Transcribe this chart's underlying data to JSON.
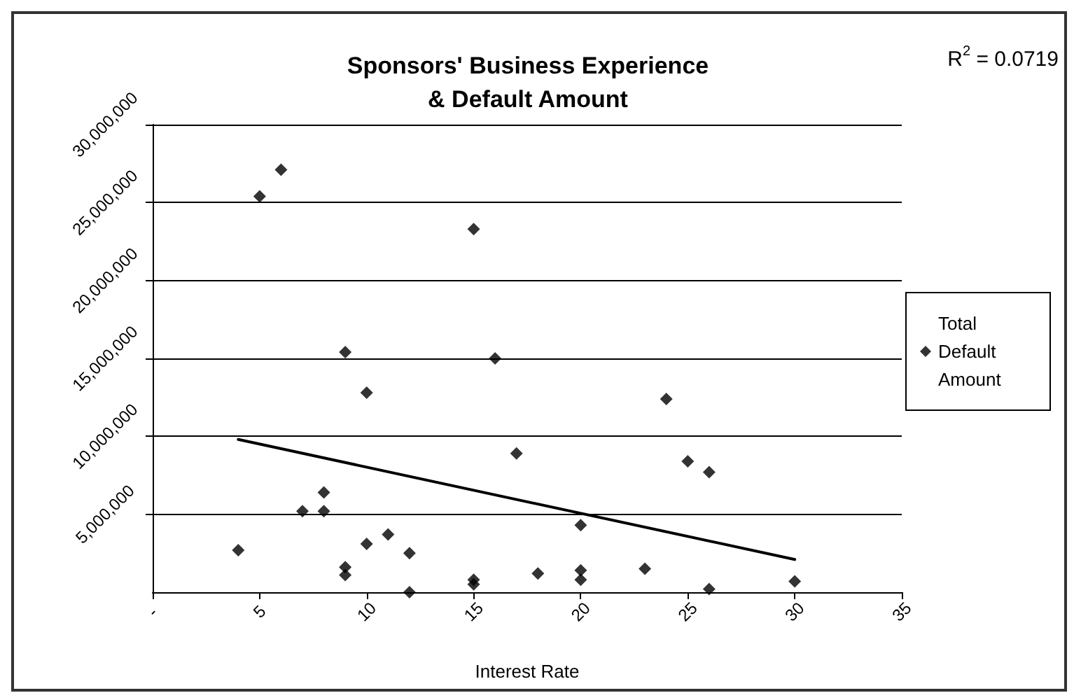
{
  "chart_data": {
    "type": "scatter",
    "title": "Sponsors' Business Experience\n& Default Amount",
    "xlabel": "Interest Rate",
    "annotations": [
      "R$^{2}$ = 0.0719"
    ],
    "xlim": [
      0,
      35
    ],
    "xticks": [
      {
        "value": 0,
        "label": "-"
      },
      5,
      10,
      15,
      20,
      25,
      30,
      35
    ],
    "ylim": [
      0,
      30000000
    ],
    "yticks": [
      {
        "value": 5000000,
        "label": "5,000,000"
      },
      {
        "value": 10000000,
        "label": "10,000,000"
      },
      {
        "value": 15000000,
        "label": "15,000,000"
      },
      {
        "value": 20000000,
        "label": "20,000,000"
      },
      {
        "value": 25000000,
        "label": "25,000,000"
      },
      {
        "value": 30000000,
        "label": "30,000,000"
      }
    ],
    "grid": "y",
    "legend": "right",
    "marker": "diamond",
    "series": [
      {
        "name": "Total Default Amount",
        "color": "#000000",
        "x": [
          5,
          6,
          15,
          9,
          16,
          10,
          17,
          8,
          7,
          8,
          4,
          10,
          11,
          12,
          9,
          9,
          12,
          15,
          15,
          18,
          24,
          25,
          26,
          20,
          20,
          20,
          23,
          26,
          30
        ],
        "values": [
          25400000,
          27100000,
          23300000,
          15400000,
          15000000,
          12800000,
          8900000,
          6400000,
          5200000,
          5200000,
          2700000,
          3100000,
          3700000,
          2500000,
          1600000,
          1100000,
          0,
          800000,
          500000,
          1200000,
          12400000,
          8400000,
          7700000,
          4300000,
          1400000,
          800000,
          1500000,
          200000,
          700000
        ]
      },
      {
        "type": "line",
        "marker": "none",
        "color": "#000000",
        "x": [
          4,
          30
        ],
        "values": [
          9800000,
          2100000
        ]
      }
    ]
  }
}
